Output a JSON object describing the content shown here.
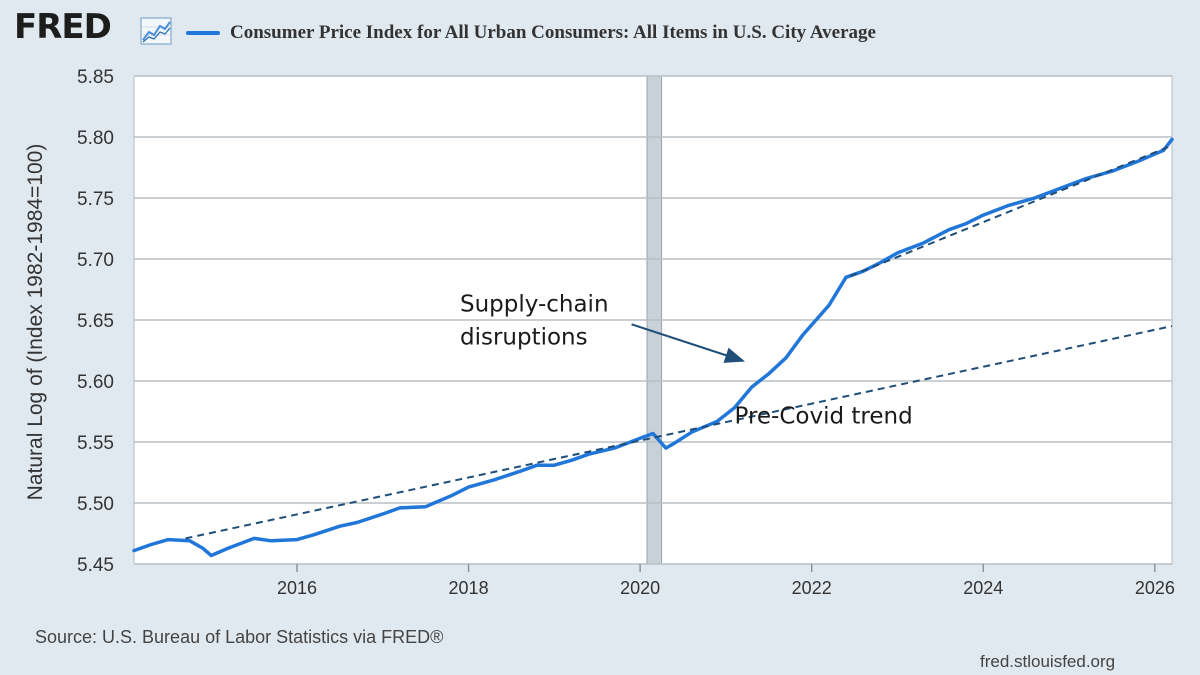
{
  "header": {
    "logo": "FRED",
    "title": "Consumer Price Index for All Urban Consumers: All Items in U.S. City Average"
  },
  "footer": {
    "source": "Source: U.S. Bureau of Labor Statistics via FRED®",
    "credit": "fred.stlouisfed.org"
  },
  "colors": {
    "series": "#2176d9",
    "trend": "#1f4e79",
    "recession": "#c8d0d8",
    "arrow": "#1f4e79"
  },
  "chart_data": {
    "type": "line",
    "title": "Consumer Price Index for All Urban Consumers: All Items in U.S. City Average",
    "xlabel": "",
    "ylabel": "Natural Log of (Index 1982-1984=100)",
    "xlim": [
      2014.1,
      2026.2
    ],
    "ylim": [
      5.45,
      5.85
    ],
    "x_ticks": [
      2016,
      2018,
      2020,
      2022,
      2024,
      2026
    ],
    "x_tick_labels": [
      "2016",
      "2018",
      "2020",
      "2022",
      "2024",
      "2026"
    ],
    "y_ticks": [
      5.45,
      5.5,
      5.55,
      5.6,
      5.65,
      5.7,
      5.75,
      5.8,
      5.85
    ],
    "y_tick_labels": [
      "5.45",
      "5.50",
      "5.55",
      "5.60",
      "5.65",
      "5.70",
      "5.75",
      "5.80",
      "5.85"
    ],
    "grid": "horizontal",
    "recession": [
      2020.08,
      2020.25
    ],
    "series": [
      {
        "style": "solid",
        "x": [
          2014.1,
          2014.3,
          2014.5,
          2014.75,
          2014.9,
          2015.0,
          2015.2,
          2015.5,
          2015.7,
          2016.0,
          2016.2,
          2016.5,
          2016.7,
          2017.0,
          2017.2,
          2017.5,
          2017.6,
          2017.8,
          2018.0,
          2018.3,
          2018.6,
          2018.8,
          2019.0,
          2019.2,
          2019.4,
          2019.7,
          2020.0,
          2020.15,
          2020.3,
          2020.4,
          2020.6,
          2020.9,
          2021.1,
          2021.3,
          2021.5,
          2021.7,
          2021.9,
          2022.2,
          2022.4,
          2022.6,
          2022.8,
          2023.0,
          2023.3,
          2023.6,
          2023.8,
          2024.0,
          2024.3,
          2024.6,
          2024.9,
          2025.2,
          2025.5,
          2025.8,
          2026.1,
          2026.2
        ],
        "y": [
          5.461,
          5.466,
          5.47,
          5.469,
          5.463,
          5.457,
          5.463,
          5.471,
          5.469,
          5.47,
          5.474,
          5.481,
          5.484,
          5.491,
          5.496,
          5.497,
          5.5,
          5.506,
          5.513,
          5.519,
          5.526,
          5.531,
          5.531,
          5.535,
          5.54,
          5.545,
          5.553,
          5.557,
          5.545,
          5.549,
          5.558,
          5.567,
          5.578,
          5.595,
          5.606,
          5.619,
          5.638,
          5.662,
          5.685,
          5.69,
          5.697,
          5.705,
          5.713,
          5.724,
          5.729,
          5.736,
          5.744,
          5.75,
          5.758,
          5.766,
          5.772,
          5.78,
          5.789,
          5.798
        ]
      },
      {
        "style": "dashed",
        "x": [
          2014.7,
          2026.2
        ],
        "y": [
          5.471,
          5.645
        ]
      },
      {
        "style": "dashed",
        "x": [
          2022.45,
          2026.2
        ],
        "y": [
          5.686,
          5.793
        ]
      }
    ],
    "annotations": [
      {
        "id": "supply",
        "lines": [
          "Supply-chain",
          "disruptions"
        ],
        "x": 2017.9,
        "y": 5.657,
        "arrow_from": [
          2019.9,
          5.6465
        ],
        "arrow_to": [
          2021.2,
          5.6165
        ]
      },
      {
        "id": "trend",
        "lines": [
          "Pre-Covid trend"
        ],
        "x": 2021.1,
        "y": 5.565
      }
    ]
  }
}
